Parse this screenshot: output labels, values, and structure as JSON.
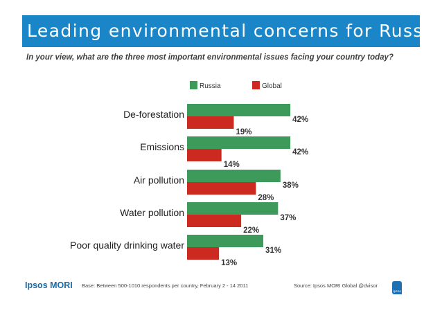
{
  "header": {
    "title": "Leading environmental concerns for Russia"
  },
  "subtitle": "In your view, what are the three most important environmental issues facing your country today?",
  "chart_data": {
    "type": "bar",
    "orientation": "horizontal",
    "categories": [
      "De-forestation",
      "Emissions",
      "Air pollution",
      "Water pollution",
      "Poor quality drinking water"
    ],
    "series": [
      {
        "name": "Russia",
        "values": [
          42,
          42,
          38,
          37,
          31
        ],
        "labels": [
          "42%",
          "42%",
          "38%",
          "37%",
          "31%"
        ]
      },
      {
        "name": "Global",
        "values": [
          19,
          14,
          28,
          22,
          13
        ],
        "labels": [
          "19%",
          "14%",
          "28%",
          "22%",
          "13%"
        ]
      }
    ],
    "unit": "%",
    "xlim": [
      0,
      50
    ],
    "legend_position": "top",
    "colors": {
      "Russia": "#3d9a5a",
      "Global": "#cc2a21"
    }
  },
  "footer": {
    "logo": "Ipsos MORI",
    "base": "Base: Between 500-1010 respondents per country, February 2 - 14 2011",
    "source": "Source: Ipsos MORI Global @dvisor",
    "badge": "Ipsos"
  }
}
